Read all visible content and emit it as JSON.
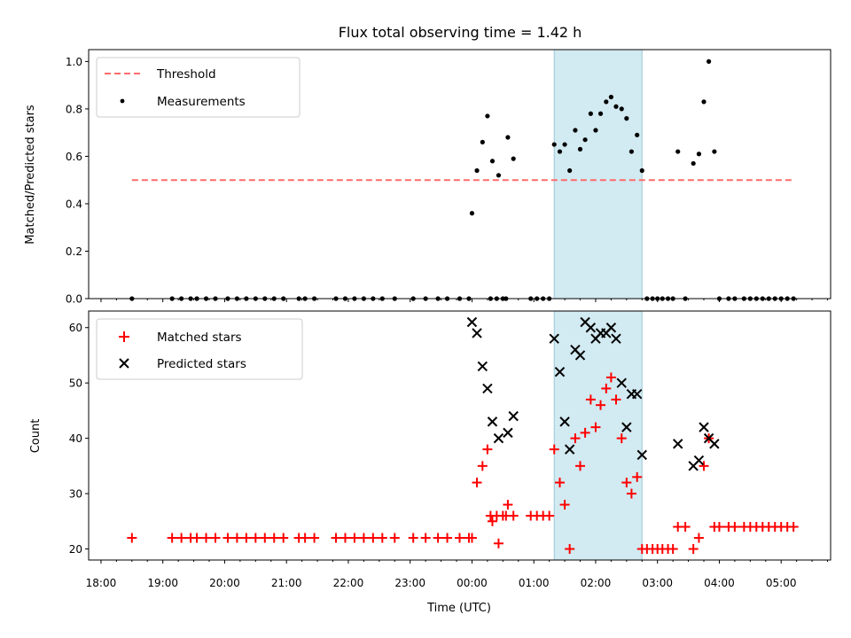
{
  "chart_data": [
    {
      "type": "scatter",
      "title": "Flux total observing time = 1.42 h",
      "xlabel": "",
      "ylabel": "Matched/Predicted stars",
      "ylim": [
        0,
        1.05
      ],
      "yticks": [
        "0.0",
        "0.2",
        "0.4",
        "0.6",
        "0.8",
        "1.0"
      ],
      "highlight": {
        "start": 1.33,
        "end": 2.75,
        "color": "#add8e6"
      },
      "legend_position": "upper left",
      "legend": [
        "Threshold",
        "Measurements"
      ],
      "threshold": {
        "name": "Threshold",
        "y": 0.5,
        "x_range": [
          -5.5,
          5.2
        ],
        "color": "#ff6b6b"
      },
      "series": [
        {
          "name": "Measurements",
          "color": "#000000",
          "marker": "dot",
          "x": [
            -5.5,
            -4.85,
            -4.7,
            -4.55,
            -4.45,
            -4.3,
            -4.15,
            -3.95,
            -3.8,
            -3.65,
            -3.5,
            -3.35,
            -3.2,
            -3.05,
            -2.8,
            -2.7,
            -2.55,
            -2.2,
            -2.05,
            -1.9,
            -1.75,
            -1.6,
            -1.45,
            -1.25,
            -0.95,
            -0.75,
            -0.55,
            -0.4,
            -0.2,
            -0.05,
            0.3,
            0.4,
            0.5,
            0.55,
            0.95,
            1.05,
            1.15,
            1.25,
            0.0,
            0.08,
            0.17,
            0.25,
            0.33,
            0.43,
            0.58,
            0.67,
            1.33,
            1.42,
            1.5,
            1.58,
            1.67,
            1.75,
            1.83,
            1.92,
            2.0,
            2.08,
            2.17,
            2.25,
            2.33,
            2.42,
            2.5,
            2.58,
            2.67,
            2.75,
            2.83,
            2.92,
            3.0,
            3.08,
            3.17,
            3.25,
            3.33,
            3.45,
            3.58,
            3.67,
            3.75,
            3.83,
            3.92,
            4.0,
            4.15,
            4.25,
            4.4,
            4.5,
            4.6,
            4.7,
            4.8,
            4.9,
            5.0,
            5.1,
            5.2
          ],
          "y": [
            0,
            0,
            0,
            0,
            0,
            0,
            0,
            0,
            0,
            0,
            0,
            0,
            0,
            0,
            0,
            0,
            0,
            0,
            0,
            0,
            0,
            0,
            0,
            0,
            0,
            0,
            0,
            0,
            0,
            0,
            0,
            0,
            0,
            0,
            0,
            0,
            0,
            0,
            0.36,
            0.54,
            0.66,
            0.77,
            0.58,
            0.52,
            0.68,
            0.59,
            0.65,
            0.62,
            0.65,
            0.54,
            0.71,
            0.63,
            0.67,
            0.78,
            0.71,
            0.78,
            0.83,
            0.85,
            0.81,
            0.8,
            0.76,
            0.62,
            0.69,
            0.54,
            0,
            0,
            0,
            0,
            0,
            0,
            0.62,
            0,
            0.57,
            0.61,
            0.83,
            1.0,
            0.62,
            0,
            0,
            0,
            0,
            0,
            0,
            0,
            0,
            0,
            0,
            0,
            0
          ]
        }
      ]
    },
    {
      "type": "scatter",
      "title": "",
      "xlabel": "Time (UTC)",
      "ylabel": "Count",
      "ylim": [
        18,
        63
      ],
      "yticks": [
        "20",
        "30",
        "40",
        "50",
        "60"
      ],
      "xticks": [
        "18:00",
        "19:00",
        "20:00",
        "21:00",
        "22:00",
        "23:00",
        "00:00",
        "01:00",
        "02:00",
        "03:00",
        "04:00",
        "05:00"
      ],
      "xlim": [
        -6.2,
        5.8
      ],
      "highlight": {
        "start": 1.33,
        "end": 2.75,
        "color": "#add8e6"
      },
      "legend_position": "upper left",
      "legend": [
        "Matched stars",
        "Predicted stars"
      ],
      "series": [
        {
          "name": "Matched stars",
          "color": "#ff0000",
          "marker": "plus",
          "x": [
            -5.5,
            -4.85,
            -4.7,
            -4.55,
            -4.45,
            -4.3,
            -4.15,
            -3.95,
            -3.8,
            -3.65,
            -3.5,
            -3.35,
            -3.2,
            -3.05,
            -2.8,
            -2.7,
            -2.55,
            -2.2,
            -2.05,
            -1.9,
            -1.75,
            -1.6,
            -1.45,
            -1.25,
            -0.95,
            -0.75,
            -0.55,
            -0.4,
            -0.2,
            -0.05,
            0.3,
            0.4,
            0.5,
            0.55,
            0.95,
            1.05,
            1.15,
            1.25,
            0.0,
            0.08,
            0.17,
            0.25,
            0.33,
            0.43,
            0.58,
            0.67,
            1.33,
            1.42,
            1.5,
            1.58,
            1.67,
            1.75,
            1.83,
            1.92,
            2.0,
            2.08,
            2.17,
            2.25,
            2.33,
            2.42,
            2.5,
            2.58,
            2.67,
            2.75,
            2.83,
            2.92,
            3.0,
            3.08,
            3.17,
            3.25,
            3.33,
            3.45,
            3.58,
            3.67,
            3.75,
            3.83,
            3.92,
            4.0,
            4.15,
            4.25,
            4.4,
            4.5,
            4.6,
            4.7,
            4.8,
            4.9,
            5.0,
            5.1,
            5.2
          ],
          "y": [
            22,
            22,
            22,
            22,
            22,
            22,
            22,
            22,
            22,
            22,
            22,
            22,
            22,
            22,
            22,
            22,
            22,
            22,
            22,
            22,
            22,
            22,
            22,
            22,
            22,
            22,
            22,
            22,
            22,
            22,
            26,
            26,
            26,
            26,
            26,
            26,
            26,
            26,
            22,
            32,
            35,
            38,
            25,
            21,
            28,
            26,
            38,
            32,
            28,
            20,
            40,
            35,
            41,
            47,
            42,
            46,
            49,
            51,
            47,
            40,
            32,
            30,
            33,
            20,
            20,
            20,
            20,
            20,
            20,
            20,
            24,
            24,
            20,
            22,
            35,
            40,
            24,
            24,
            24,
            24,
            24,
            24,
            24,
            24,
            24,
            24,
            24,
            24,
            24
          ]
        },
        {
          "name": "Predicted stars",
          "color": "#000000",
          "marker": "x",
          "x": [
            0.0,
            0.08,
            0.17,
            0.25,
            0.33,
            0.43,
            0.58,
            0.67,
            1.33,
            1.42,
            1.5,
            1.58,
            1.67,
            1.75,
            1.83,
            1.92,
            2.0,
            2.08,
            2.17,
            2.25,
            2.33,
            2.42,
            2.5,
            2.58,
            2.67,
            2.75,
            3.33,
            3.58,
            3.67,
            3.75,
            3.83,
            3.92
          ],
          "y": [
            61,
            59,
            53,
            49,
            43,
            40,
            41,
            44,
            58,
            52,
            43,
            38,
            56,
            55,
            61,
            60,
            58,
            59,
            59,
            60,
            58,
            50,
            42,
            48,
            48,
            37,
            39,
            35,
            36,
            42,
            40,
            39
          ]
        }
      ]
    }
  ]
}
